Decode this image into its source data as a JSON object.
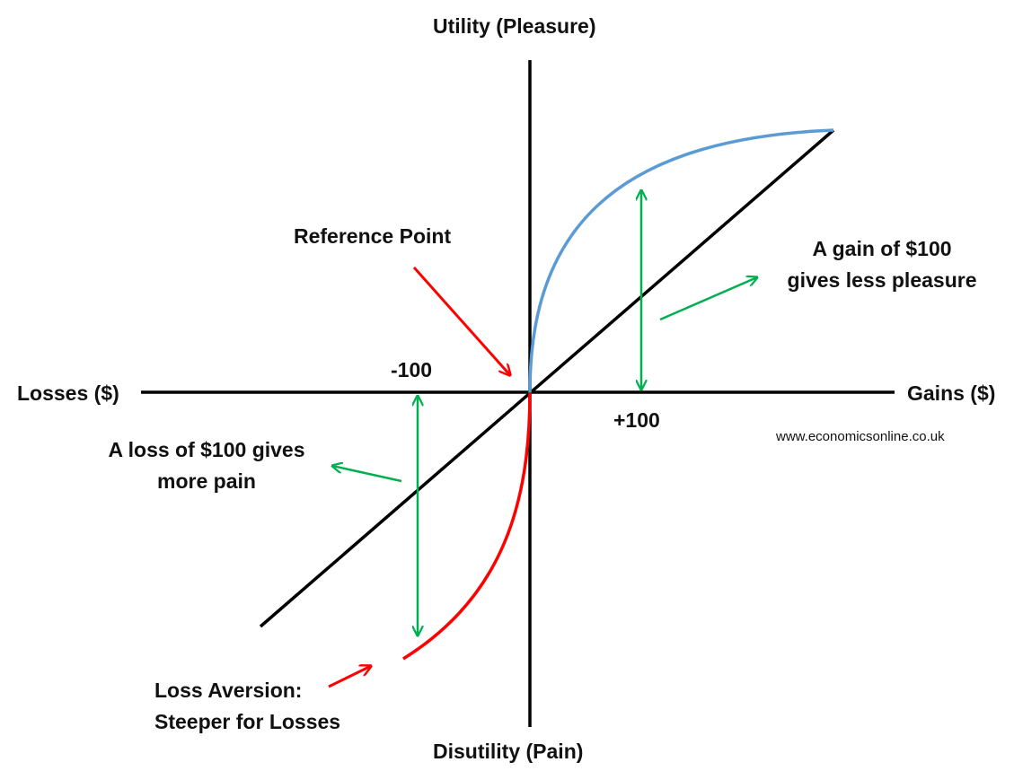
{
  "axes": {
    "y_top_label": "Utility (Pleasure)",
    "y_bottom_label": "Disutility (Pain)",
    "x_left_label": "Losses ($)",
    "x_right_label": "Gains ($)"
  },
  "ticks": {
    "neg": "-100",
    "pos": "+100"
  },
  "annotations": {
    "reference_point": "Reference Point",
    "gain": [
      "A gain of $100",
      "gives less pleasure"
    ],
    "loss": [
      "A loss of $100 gives",
      "more pain"
    ],
    "aversion": [
      "Loss Aversion:",
      "Steeper for Losses"
    ]
  },
  "source": "www.economicsonline.co.uk",
  "colors": {
    "axis": "#000000",
    "linear_line": "#000000",
    "gain_curve": "#5B9BD5",
    "loss_curve": "#FF0000",
    "gap_arrows": "#00B050",
    "pointer_arrows": "#FF0000"
  }
}
